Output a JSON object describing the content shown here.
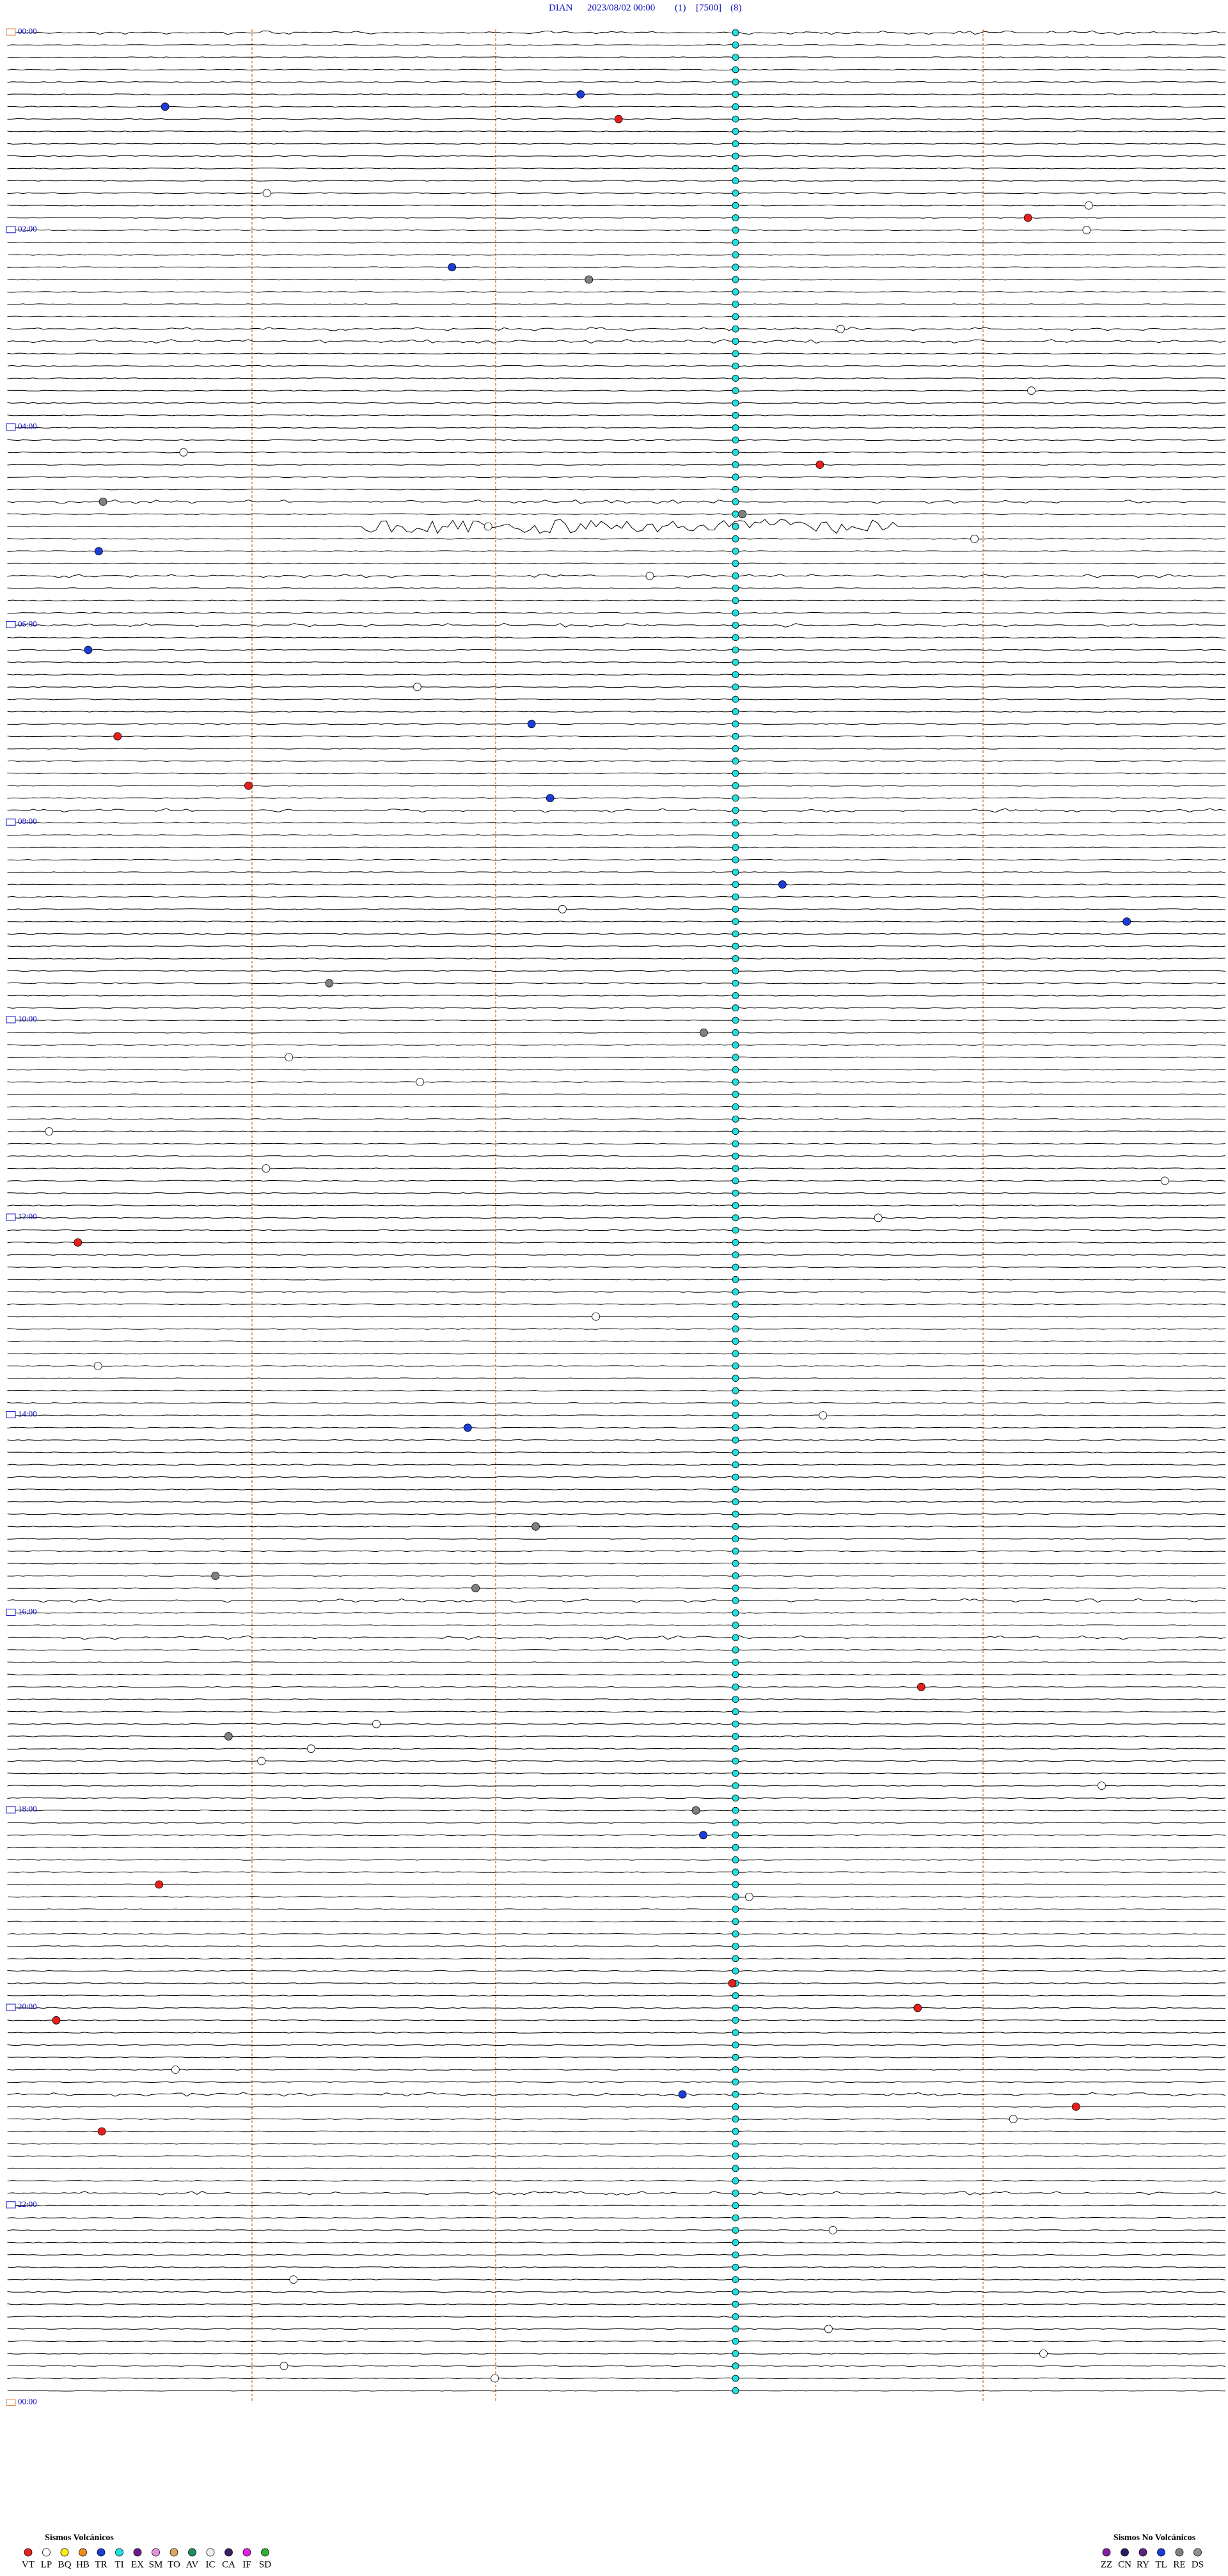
{
  "header": {
    "station": "DIAN",
    "datetime": "2023/08/02 00:00",
    "channel": "(1)",
    "scale": "[7500]",
    "filter": "(8)"
  },
  "time_labels": [
    "00:00",
    "02:00",
    "04:00",
    "06:00",
    "08:00",
    "10:00",
    "12:00",
    "14:00",
    "16:00",
    "18:00",
    "20:00",
    "22:00",
    "00:00"
  ],
  "legend_volcanic": {
    "title": "Sismos Volcánicos",
    "items": [
      {
        "code": "VT",
        "color": "#e8201c"
      },
      {
        "code": "LP",
        "color": "#ffffff"
      },
      {
        "code": "BQ",
        "color": "#f5f010"
      },
      {
        "code": "HB",
        "color": "#f08a1c"
      },
      {
        "code": "TR",
        "color": "#1c3cd8"
      },
      {
        "code": "TI",
        "color": "#20e0e0"
      },
      {
        "code": "EX",
        "color": "#6a1a8c"
      },
      {
        "code": "SM",
        "color": "#e890e0"
      },
      {
        "code": "TO",
        "color": "#d8a860"
      },
      {
        "code": "AV",
        "color": "#208c60"
      },
      {
        "code": "IC",
        "color": "#f0f0f0"
      },
      {
        "code": "CA",
        "color": "#3a2060"
      },
      {
        "code": "IF",
        "color": "#e020e0"
      },
      {
        "code": "SD",
        "color": "#30b030"
      }
    ]
  },
  "legend_nonvolcanic": {
    "title": "Sismos No Volcánicos",
    "items": [
      {
        "code": "ZZ",
        "color": "#8020a0"
      },
      {
        "code": "CN",
        "color": "#202060"
      },
      {
        "code": "RY",
        "color": "#602080"
      },
      {
        "code": "TL",
        "color": "#1c3cd8"
      },
      {
        "code": "RE",
        "color": "#808080"
      },
      {
        "code": "DS",
        "color": "#909090"
      }
    ]
  }
}
